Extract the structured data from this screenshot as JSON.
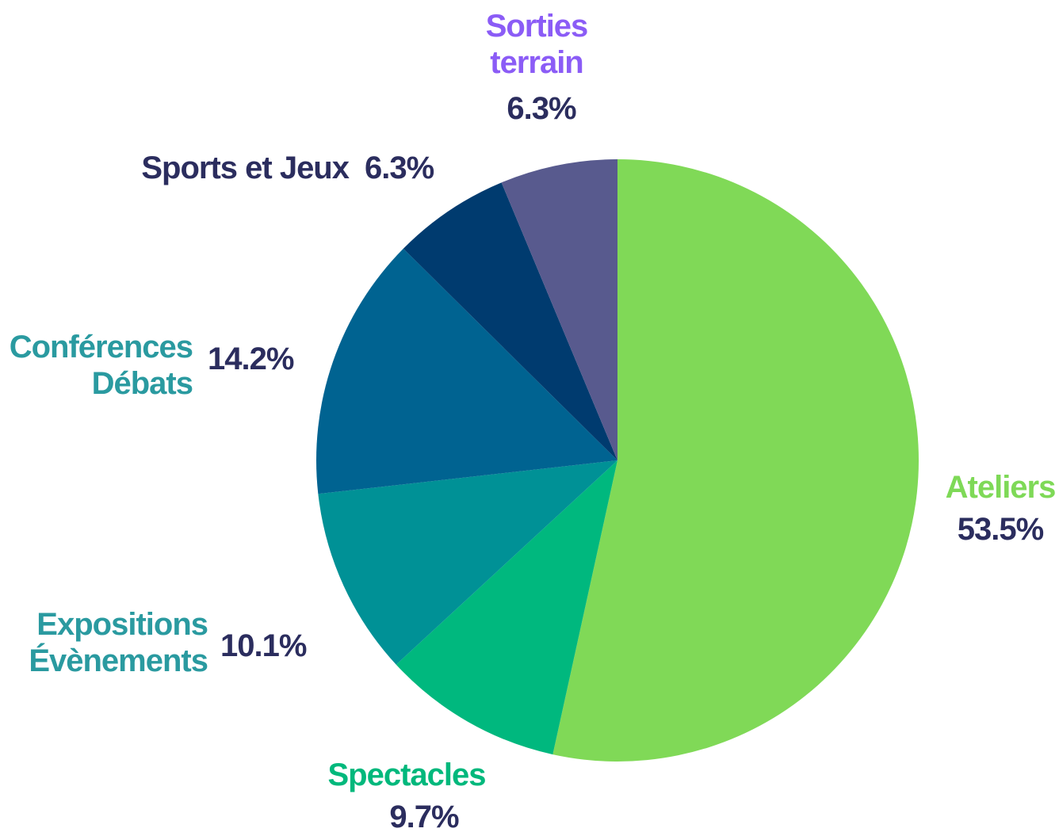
{
  "chart_data": {
    "type": "pie",
    "categories": [
      "Ateliers",
      "Spectacles",
      "Expositions\nÉvènements",
      "Conférences\nDébats",
      "Sports et Jeux",
      "Sorties\nterrain"
    ],
    "values": [
      53.5,
      9.7,
      10.1,
      14.2,
      6.3,
      6.3
    ],
    "value_labels": [
      "53.5%",
      "9.7%",
      "10.1%",
      "14.2%",
      "6.3%",
      "6.3%"
    ],
    "colors": [
      "#80d957",
      "#00b87e",
      "#009196",
      "#006391",
      "#003b6f",
      "#585a8e"
    ],
    "label_colors": [
      "#7ed957",
      "#00b87c",
      "#2a9aa0",
      "#2a9aa0",
      "#2b2d5e",
      "#8b5cf6"
    ]
  }
}
